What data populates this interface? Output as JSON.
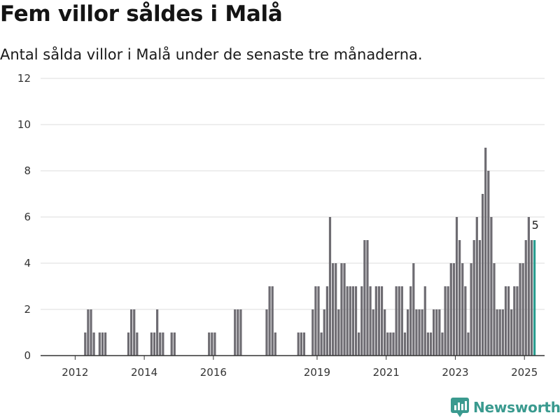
{
  "title": "Fem villor såldes i Malå",
  "subtitle": "Antal sålda villor i Malå under de senaste tre månaderna.",
  "brand": {
    "name": "Newsworthy",
    "icon": "newsworthy-logo-icon",
    "color": "#3a9a8f"
  },
  "colors": {
    "bar": "#6e6c72",
    "highlight": "#2a9d8f",
    "grid": "#dcdcdc",
    "axis": "#333333"
  },
  "chart_data": {
    "type": "bar",
    "title": "Fem villor såldes i Malå",
    "xlabel": "",
    "ylabel": "",
    "ylim": [
      0,
      12
    ],
    "yticks": [
      0,
      2,
      4,
      6,
      8,
      10,
      12
    ],
    "xlim": [
      "2011-01",
      "2025-08"
    ],
    "xticks": [
      {
        "label": "2012",
        "date": "2012-01"
      },
      {
        "label": "2014",
        "date": "2014-01"
      },
      {
        "label": "2016",
        "date": "2016-01"
      },
      {
        "label": "2019",
        "date": "2019-01"
      },
      {
        "label": "2021",
        "date": "2021-01"
      },
      {
        "label": "2023",
        "date": "2023-01"
      },
      {
        "label": "2025",
        "date": "2025-01"
      }
    ],
    "grid": true,
    "series": [
      {
        "values": [
          {
            "x": "2012-04",
            "y": 1
          },
          {
            "x": "2012-05",
            "y": 2
          },
          {
            "x": "2012-06",
            "y": 2
          },
          {
            "x": "2012-07",
            "y": 1
          },
          {
            "x": "2012-09",
            "y": 1
          },
          {
            "x": "2012-10",
            "y": 1
          },
          {
            "x": "2012-11",
            "y": 1
          },
          {
            "x": "2013-07",
            "y": 1
          },
          {
            "x": "2013-08",
            "y": 2
          },
          {
            "x": "2013-09",
            "y": 2
          },
          {
            "x": "2013-10",
            "y": 1
          },
          {
            "x": "2014-03",
            "y": 1
          },
          {
            "x": "2014-04",
            "y": 1
          },
          {
            "x": "2014-05",
            "y": 2
          },
          {
            "x": "2014-06",
            "y": 1
          },
          {
            "x": "2014-07",
            "y": 1
          },
          {
            "x": "2014-10",
            "y": 1
          },
          {
            "x": "2014-11",
            "y": 1
          },
          {
            "x": "2015-11",
            "y": 1
          },
          {
            "x": "2015-12",
            "y": 1
          },
          {
            "x": "2016-01",
            "y": 1
          },
          {
            "x": "2016-08",
            "y": 2
          },
          {
            "x": "2016-09",
            "y": 2
          },
          {
            "x": "2016-10",
            "y": 2
          },
          {
            "x": "2017-07",
            "y": 2
          },
          {
            "x": "2017-08",
            "y": 3
          },
          {
            "x": "2017-09",
            "y": 3
          },
          {
            "x": "2017-10",
            "y": 1
          },
          {
            "x": "2018-06",
            "y": 1
          },
          {
            "x": "2018-07",
            "y": 1
          },
          {
            "x": "2018-08",
            "y": 1
          },
          {
            "x": "2018-11",
            "y": 2
          },
          {
            "x": "2018-12",
            "y": 3
          },
          {
            "x": "2019-01",
            "y": 3
          },
          {
            "x": "2019-02",
            "y": 1
          },
          {
            "x": "2019-03",
            "y": 2
          },
          {
            "x": "2019-04",
            "y": 3
          },
          {
            "x": "2019-05",
            "y": 6
          },
          {
            "x": "2019-06",
            "y": 4
          },
          {
            "x": "2019-07",
            "y": 4
          },
          {
            "x": "2019-08",
            "y": 2
          },
          {
            "x": "2019-09",
            "y": 4
          },
          {
            "x": "2019-10",
            "y": 4
          },
          {
            "x": "2019-11",
            "y": 3
          },
          {
            "x": "2019-12",
            "y": 3
          },
          {
            "x": "2020-01",
            "y": 3
          },
          {
            "x": "2020-02",
            "y": 3
          },
          {
            "x": "2020-03",
            "y": 1
          },
          {
            "x": "2020-04",
            "y": 3
          },
          {
            "x": "2020-05",
            "y": 5
          },
          {
            "x": "2020-06",
            "y": 5
          },
          {
            "x": "2020-07",
            "y": 3
          },
          {
            "x": "2020-08",
            "y": 2
          },
          {
            "x": "2020-09",
            "y": 3
          },
          {
            "x": "2020-10",
            "y": 3
          },
          {
            "x": "2020-11",
            "y": 3
          },
          {
            "x": "2020-12",
            "y": 2
          },
          {
            "x": "2021-01",
            "y": 1
          },
          {
            "x": "2021-02",
            "y": 1
          },
          {
            "x": "2021-03",
            "y": 1
          },
          {
            "x": "2021-04",
            "y": 3
          },
          {
            "x": "2021-05",
            "y": 3
          },
          {
            "x": "2021-06",
            "y": 3
          },
          {
            "x": "2021-07",
            "y": 1
          },
          {
            "x": "2021-08",
            "y": 2
          },
          {
            "x": "2021-09",
            "y": 3
          },
          {
            "x": "2021-10",
            "y": 4
          },
          {
            "x": "2021-11",
            "y": 2
          },
          {
            "x": "2021-12",
            "y": 2
          },
          {
            "x": "2022-01",
            "y": 2
          },
          {
            "x": "2022-02",
            "y": 3
          },
          {
            "x": "2022-03",
            "y": 1
          },
          {
            "x": "2022-04",
            "y": 1
          },
          {
            "x": "2022-05",
            "y": 2
          },
          {
            "x": "2022-06",
            "y": 2
          },
          {
            "x": "2022-07",
            "y": 2
          },
          {
            "x": "2022-08",
            "y": 1
          },
          {
            "x": "2022-09",
            "y": 3
          },
          {
            "x": "2022-10",
            "y": 3
          },
          {
            "x": "2022-11",
            "y": 4
          },
          {
            "x": "2022-12",
            "y": 4
          },
          {
            "x": "2023-01",
            "y": 6
          },
          {
            "x": "2023-02",
            "y": 5
          },
          {
            "x": "2023-03",
            "y": 4
          },
          {
            "x": "2023-04",
            "y": 3
          },
          {
            "x": "2023-05",
            "y": 1
          },
          {
            "x": "2023-06",
            "y": 4
          },
          {
            "x": "2023-07",
            "y": 5
          },
          {
            "x": "2023-08",
            "y": 6
          },
          {
            "x": "2023-09",
            "y": 5
          },
          {
            "x": "2023-10",
            "y": 7
          },
          {
            "x": "2023-11",
            "y": 9
          },
          {
            "x": "2023-12",
            "y": 8
          },
          {
            "x": "2024-01",
            "y": 6
          },
          {
            "x": "2024-02",
            "y": 4
          },
          {
            "x": "2024-03",
            "y": 2
          },
          {
            "x": "2024-04",
            "y": 2
          },
          {
            "x": "2024-05",
            "y": 2
          },
          {
            "x": "2024-06",
            "y": 3
          },
          {
            "x": "2024-07",
            "y": 3
          },
          {
            "x": "2024-08",
            "y": 2
          },
          {
            "x": "2024-09",
            "y": 3
          },
          {
            "x": "2024-10",
            "y": 3
          },
          {
            "x": "2024-11",
            "y": 4
          },
          {
            "x": "2024-12",
            "y": 4
          },
          {
            "x": "2025-01",
            "y": 5
          },
          {
            "x": "2025-02",
            "y": 6
          },
          {
            "x": "2025-03",
            "y": 5
          },
          {
            "x": "2025-04",
            "y": 5
          }
        ]
      }
    ],
    "annotations": [
      {
        "x": "2025-04",
        "text": "5"
      }
    ]
  }
}
